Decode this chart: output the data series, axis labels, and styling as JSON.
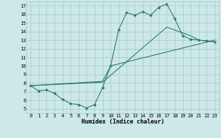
{
  "xlabel": "Humidex (Indice chaleur)",
  "background_color": "#cce8e8",
  "grid_color": "#aacccc",
  "line_color": "#2a7a6f",
  "xlim": [
    -0.5,
    23.5
  ],
  "ylim": [
    4.5,
    17.5
  ],
  "xticks": [
    0,
    1,
    2,
    3,
    4,
    5,
    6,
    7,
    8,
    9,
    10,
    11,
    12,
    13,
    14,
    15,
    16,
    17,
    18,
    19,
    20,
    21,
    22,
    23
  ],
  "yticks": [
    5,
    6,
    7,
    8,
    9,
    10,
    11,
    12,
    13,
    14,
    15,
    16,
    17
  ],
  "curve1_x": [
    0,
    1,
    2,
    3,
    4,
    5,
    6,
    7,
    8,
    9,
    10,
    11,
    12,
    13,
    14,
    15,
    16,
    17,
    18,
    19,
    20,
    21,
    22,
    23
  ],
  "curve1_y": [
    7.7,
    7.1,
    7.2,
    6.8,
    6.1,
    5.6,
    5.5,
    5.1,
    5.5,
    7.5,
    10.0,
    14.2,
    16.2,
    15.9,
    16.3,
    15.9,
    16.8,
    17.2,
    15.5,
    13.5,
    13.1,
    13.0,
    12.9,
    12.8
  ],
  "curve2_x": [
    0,
    9,
    10,
    23
  ],
  "curve2_y": [
    7.7,
    8.2,
    10.0,
    13.0
  ],
  "curve3_x": [
    0,
    9,
    17,
    20,
    21,
    22,
    23
  ],
  "curve3_y": [
    7.7,
    8.1,
    14.5,
    13.5,
    13.0,
    12.9,
    12.8
  ],
  "font_size_tick": 5.0,
  "font_size_xlabel": 6.0
}
